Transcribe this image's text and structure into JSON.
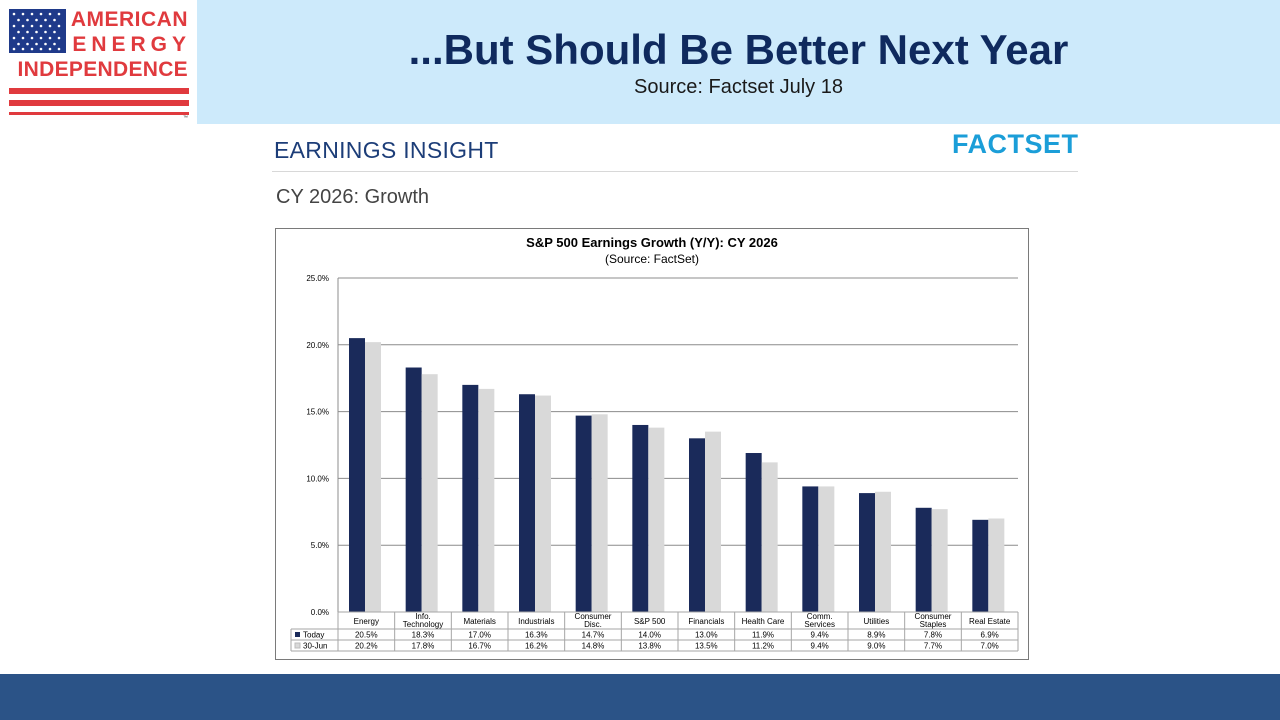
{
  "logo": {
    "line1": "AMERICAN",
    "line2": "ENERGY",
    "line3": "INDEPENDENCE",
    "tm": "™",
    "colors": {
      "red": "#e03a3e",
      "blue": "#1f3a8a"
    }
  },
  "slide": {
    "title": "...But Should Be Better Next Year",
    "source": "Source: Factset July 18"
  },
  "insight": {
    "label": "EARNINGS INSIGHT",
    "brand": "FACTSET",
    "section": "CY 2026: Growth"
  },
  "chart_data": {
    "type": "bar",
    "title": "S&P 500 Earnings Growth (Y/Y): CY 2026",
    "subtitle": "(Source: FactSet)",
    "categories": [
      "Energy",
      "Info. Technology",
      "Materials",
      "Industrials",
      "Consumer Disc.",
      "S&P 500",
      "Financials",
      "Health Care",
      "Comm. Services",
      "Utilities",
      "Consumer Staples",
      "Real Estate"
    ],
    "category_lines": [
      [
        "Energy"
      ],
      [
        "Info.",
        "Technology"
      ],
      [
        "Materials"
      ],
      [
        "Industrials"
      ],
      [
        "Consumer",
        "Disc."
      ],
      [
        "S&P 500"
      ],
      [
        "Financials"
      ],
      [
        "Health Care"
      ],
      [
        "Comm.",
        "Services"
      ],
      [
        "Utilities"
      ],
      [
        "Consumer",
        "Staples"
      ],
      [
        "Real Estate"
      ]
    ],
    "series": [
      {
        "name": "Today",
        "color": "#1a2a5a",
        "values": [
          20.5,
          18.3,
          17.0,
          16.3,
          14.7,
          14.0,
          13.0,
          11.9,
          9.4,
          8.9,
          7.8,
          6.9
        ],
        "labels": [
          "20.5%",
          "18.3%",
          "17.0%",
          "16.3%",
          "14.7%",
          "14.0%",
          "13.0%",
          "11.9%",
          "9.4%",
          "8.9%",
          "7.8%",
          "6.9%"
        ]
      },
      {
        "name": "30-Jun",
        "color": "#d9d9d9",
        "values": [
          20.2,
          17.8,
          16.7,
          16.2,
          14.8,
          13.8,
          13.5,
          11.2,
          9.4,
          9.0,
          7.7,
          7.0
        ],
        "labels": [
          "20.2%",
          "17.8%",
          "16.7%",
          "16.2%",
          "14.8%",
          "13.8%",
          "13.5%",
          "11.2%",
          "9.4%",
          "9.0%",
          "7.7%",
          "7.0%"
        ]
      }
    ],
    "yticks": [
      "0.0%",
      "5.0%",
      "10.0%",
      "15.0%",
      "20.0%",
      "25.0%"
    ],
    "ylim": [
      0,
      25
    ],
    "grid": true,
    "legend": "data-table"
  }
}
